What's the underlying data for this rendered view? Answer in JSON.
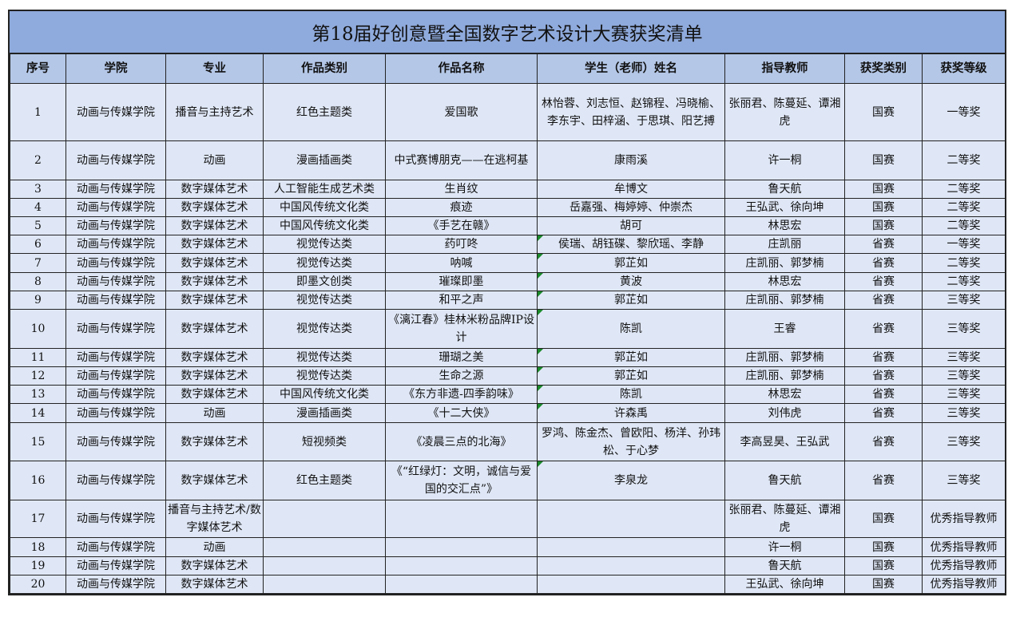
{
  "title": "第18届好创意暨全国数字艺术设计大赛获奖清单",
  "columns": [
    "序号",
    "学院",
    "专业",
    "作品类别",
    "作品名称",
    "学生（老师）姓名",
    "指导教师",
    "获奖类别",
    "获奖等级"
  ],
  "rows": [
    [
      "1",
      "动画与传媒学院",
      "播音与主持艺术",
      "红色主题类",
      "爱国歌",
      "林怡蓉、刘志恒、赵锦程、冯晓榆、李东宇、田梓涵、于思琪、阳艺搏",
      "张丽君、陈蔓延、谭湘虎",
      "国赛",
      "一等奖"
    ],
    [
      "2",
      "动画与传媒学院",
      "动画",
      "漫画插画类",
      "中式赛博朋克——在逃柯基",
      "康雨溪",
      "许一桐",
      "国赛",
      "二等奖"
    ],
    [
      "3",
      "动画与传媒学院",
      "数字媒体艺术",
      "人工智能生成艺术类",
      "生肖纹",
      "牟博文",
      "鲁天航",
      "国赛",
      "二等奖"
    ],
    [
      "4",
      "动画与传媒学院",
      "数字媒体艺术",
      "中国风传统文化类",
      "痕迹",
      "岳嘉强、梅婷婷、仲崇杰",
      "王弘武、徐向坤",
      "国赛",
      "二等奖"
    ],
    [
      "5",
      "动画与传媒学院",
      "数字媒体艺术",
      "中国风传统文化类",
      "《手艺在赣》",
      "胡可",
      "林思宏",
      "国赛",
      "二等奖"
    ],
    [
      "6",
      "动画与传媒学院",
      "数字媒体艺术",
      "视觉传达类",
      "药叮咚",
      "侯瑞、胡钰碟、黎欣瑶、李静",
      "庄凯丽",
      "省赛",
      "一等奖"
    ],
    [
      "7",
      "动画与传媒学院",
      "数字媒体艺术",
      "视觉传达类",
      "呐喊",
      "郭芷如",
      "庄凯丽、郭梦楠",
      "省赛",
      "二等奖"
    ],
    [
      "8",
      "动画与传媒学院",
      "数字媒体艺术",
      "即墨文创类",
      "璀璨即墨",
      "黄波",
      "林思宏",
      "省赛",
      "二等奖"
    ],
    [
      "9",
      "动画与传媒学院",
      "数字媒体艺术",
      "视觉传达类",
      "和平之声",
      "郭芷如",
      "庄凯丽、郭梦楠",
      "省赛",
      "三等奖"
    ],
    [
      "10",
      "动画与传媒学院",
      "数字媒体艺术",
      "视觉传达类",
      "《漓江春》桂林米粉品牌IP设计",
      "陈凯",
      "王睿",
      "省赛",
      "三等奖"
    ],
    [
      "11",
      "动画与传媒学院",
      "数字媒体艺术",
      "视觉传达类",
      "珊瑚之美",
      "郭芷如",
      "庄凯丽、郭梦楠",
      "省赛",
      "三等奖"
    ],
    [
      "12",
      "动画与传媒学院",
      "数字媒体艺术",
      "视觉传达类",
      "生命之源",
      "郭芷如",
      "庄凯丽、郭梦楠",
      "省赛",
      "三等奖"
    ],
    [
      "13",
      "动画与传媒学院",
      "数字媒体艺术",
      "中国风传统文化类",
      "《东方非遗-四季韵味》",
      "陈凯",
      "林思宏",
      "省赛",
      "三等奖"
    ],
    [
      "14",
      "动画与传媒学院",
      "动画",
      "漫画插画类",
      "《十二大侠》",
      "许森禹",
      "刘伟虎",
      "省赛",
      "三等奖"
    ],
    [
      "15",
      "动画与传媒学院",
      "数字媒体艺术",
      "短视频类",
      "《凌晨三点的北海》",
      "罗鸿、陈金杰、曾欧阳、杨洋、孙玮松、于心梦",
      "李高昱昊、王弘武",
      "省赛",
      "三等奖"
    ],
    [
      "16",
      "动画与传媒学院",
      "数字媒体艺术",
      "红色主题类",
      "《“红绿灯：文明，诚信与爱国的交汇点”》",
      "李泉龙",
      "鲁天航",
      "省赛",
      "三等奖"
    ],
    [
      "17",
      "动画与传媒学院",
      "播音与主持艺术/数字媒体艺术",
      "",
      "",
      "",
      "张丽君、陈蔓延、谭湘虎",
      "国赛",
      "优秀指导教师"
    ],
    [
      "18",
      "动画与传媒学院",
      "动画",
      "",
      "",
      "",
      "许一桐",
      "国赛",
      "优秀指导教师"
    ],
    [
      "19",
      "动画与传媒学院",
      "数字媒体艺术",
      "",
      "",
      "",
      "鲁天航",
      "国赛",
      "优秀指导教师"
    ],
    [
      "20",
      "动画与传媒学院",
      "数字媒体艺术",
      "",
      "",
      "",
      "王弘武、徐向坤",
      "国赛",
      "优秀指导教师"
    ]
  ],
  "colors": {
    "title_bg": "#8faadc",
    "header_bg": "#b4c7e7",
    "cell_bg": "#dfe7f6",
    "comment_marker": "#1a8a2a"
  }
}
